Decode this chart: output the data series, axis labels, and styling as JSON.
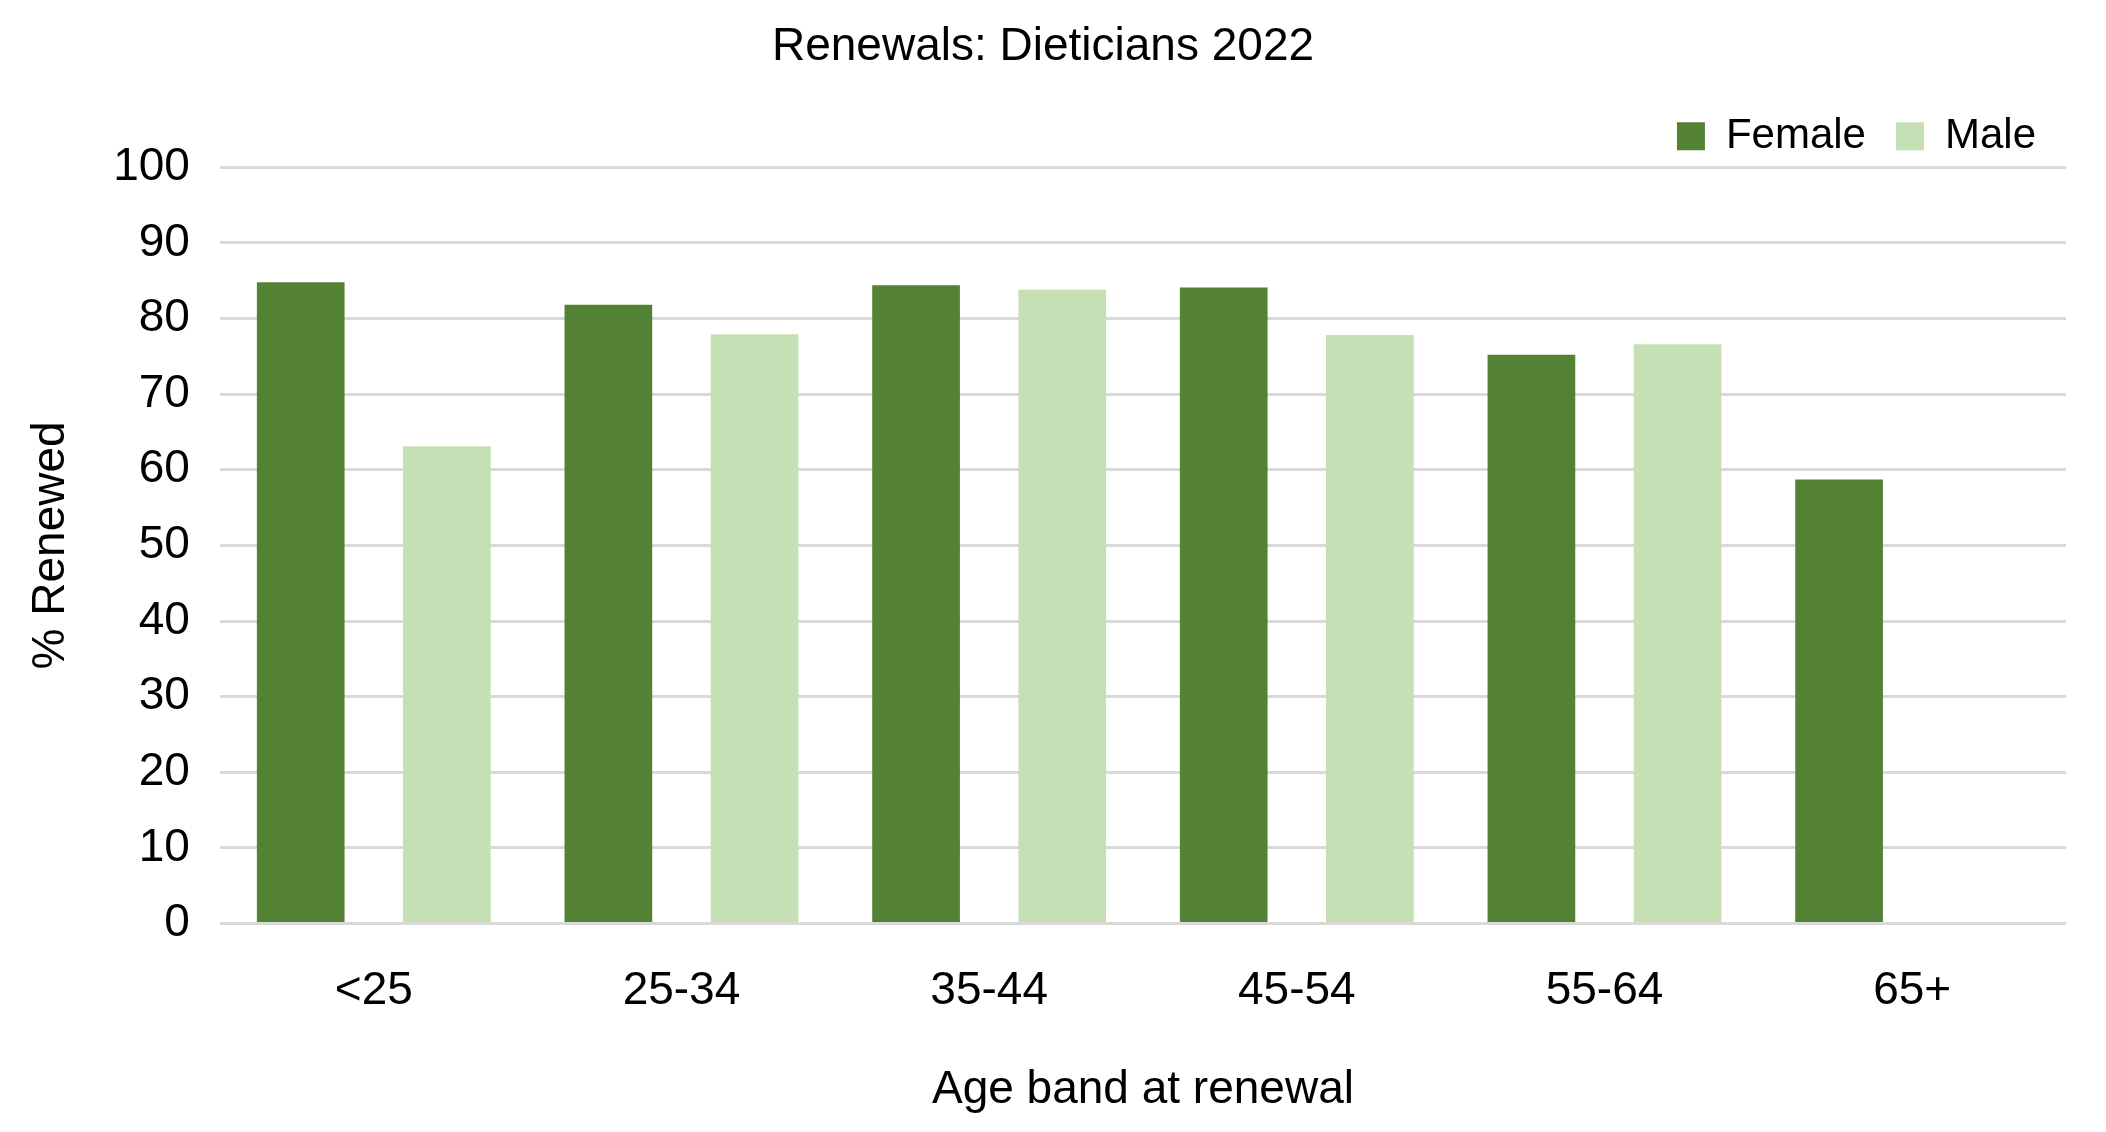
{
  "chart_data": {
    "type": "bar",
    "title": "Renewals: Dieticians 2022",
    "xlabel": "Age band at renewal",
    "ylabel": "% Renewed",
    "categories": [
      "<25",
      "25-34",
      "35-44",
      "45-54",
      "55-64",
      "65+"
    ],
    "series": [
      {
        "name": "Female",
        "color": "#548235",
        "values": [
          84.8,
          81.8,
          84.4,
          84.1,
          75.2,
          58.7
        ]
      },
      {
        "name": "Male",
        "color": "#c5e0b4",
        "values": [
          63.1,
          77.9,
          83.8,
          77.8,
          76.6,
          null
        ]
      }
    ],
    "ylim": [
      0,
      100
    ],
    "yticks": [
      0,
      10,
      20,
      30,
      40,
      50,
      60,
      70,
      80,
      90,
      100
    ],
    "grid": "y",
    "legend": "top right"
  }
}
